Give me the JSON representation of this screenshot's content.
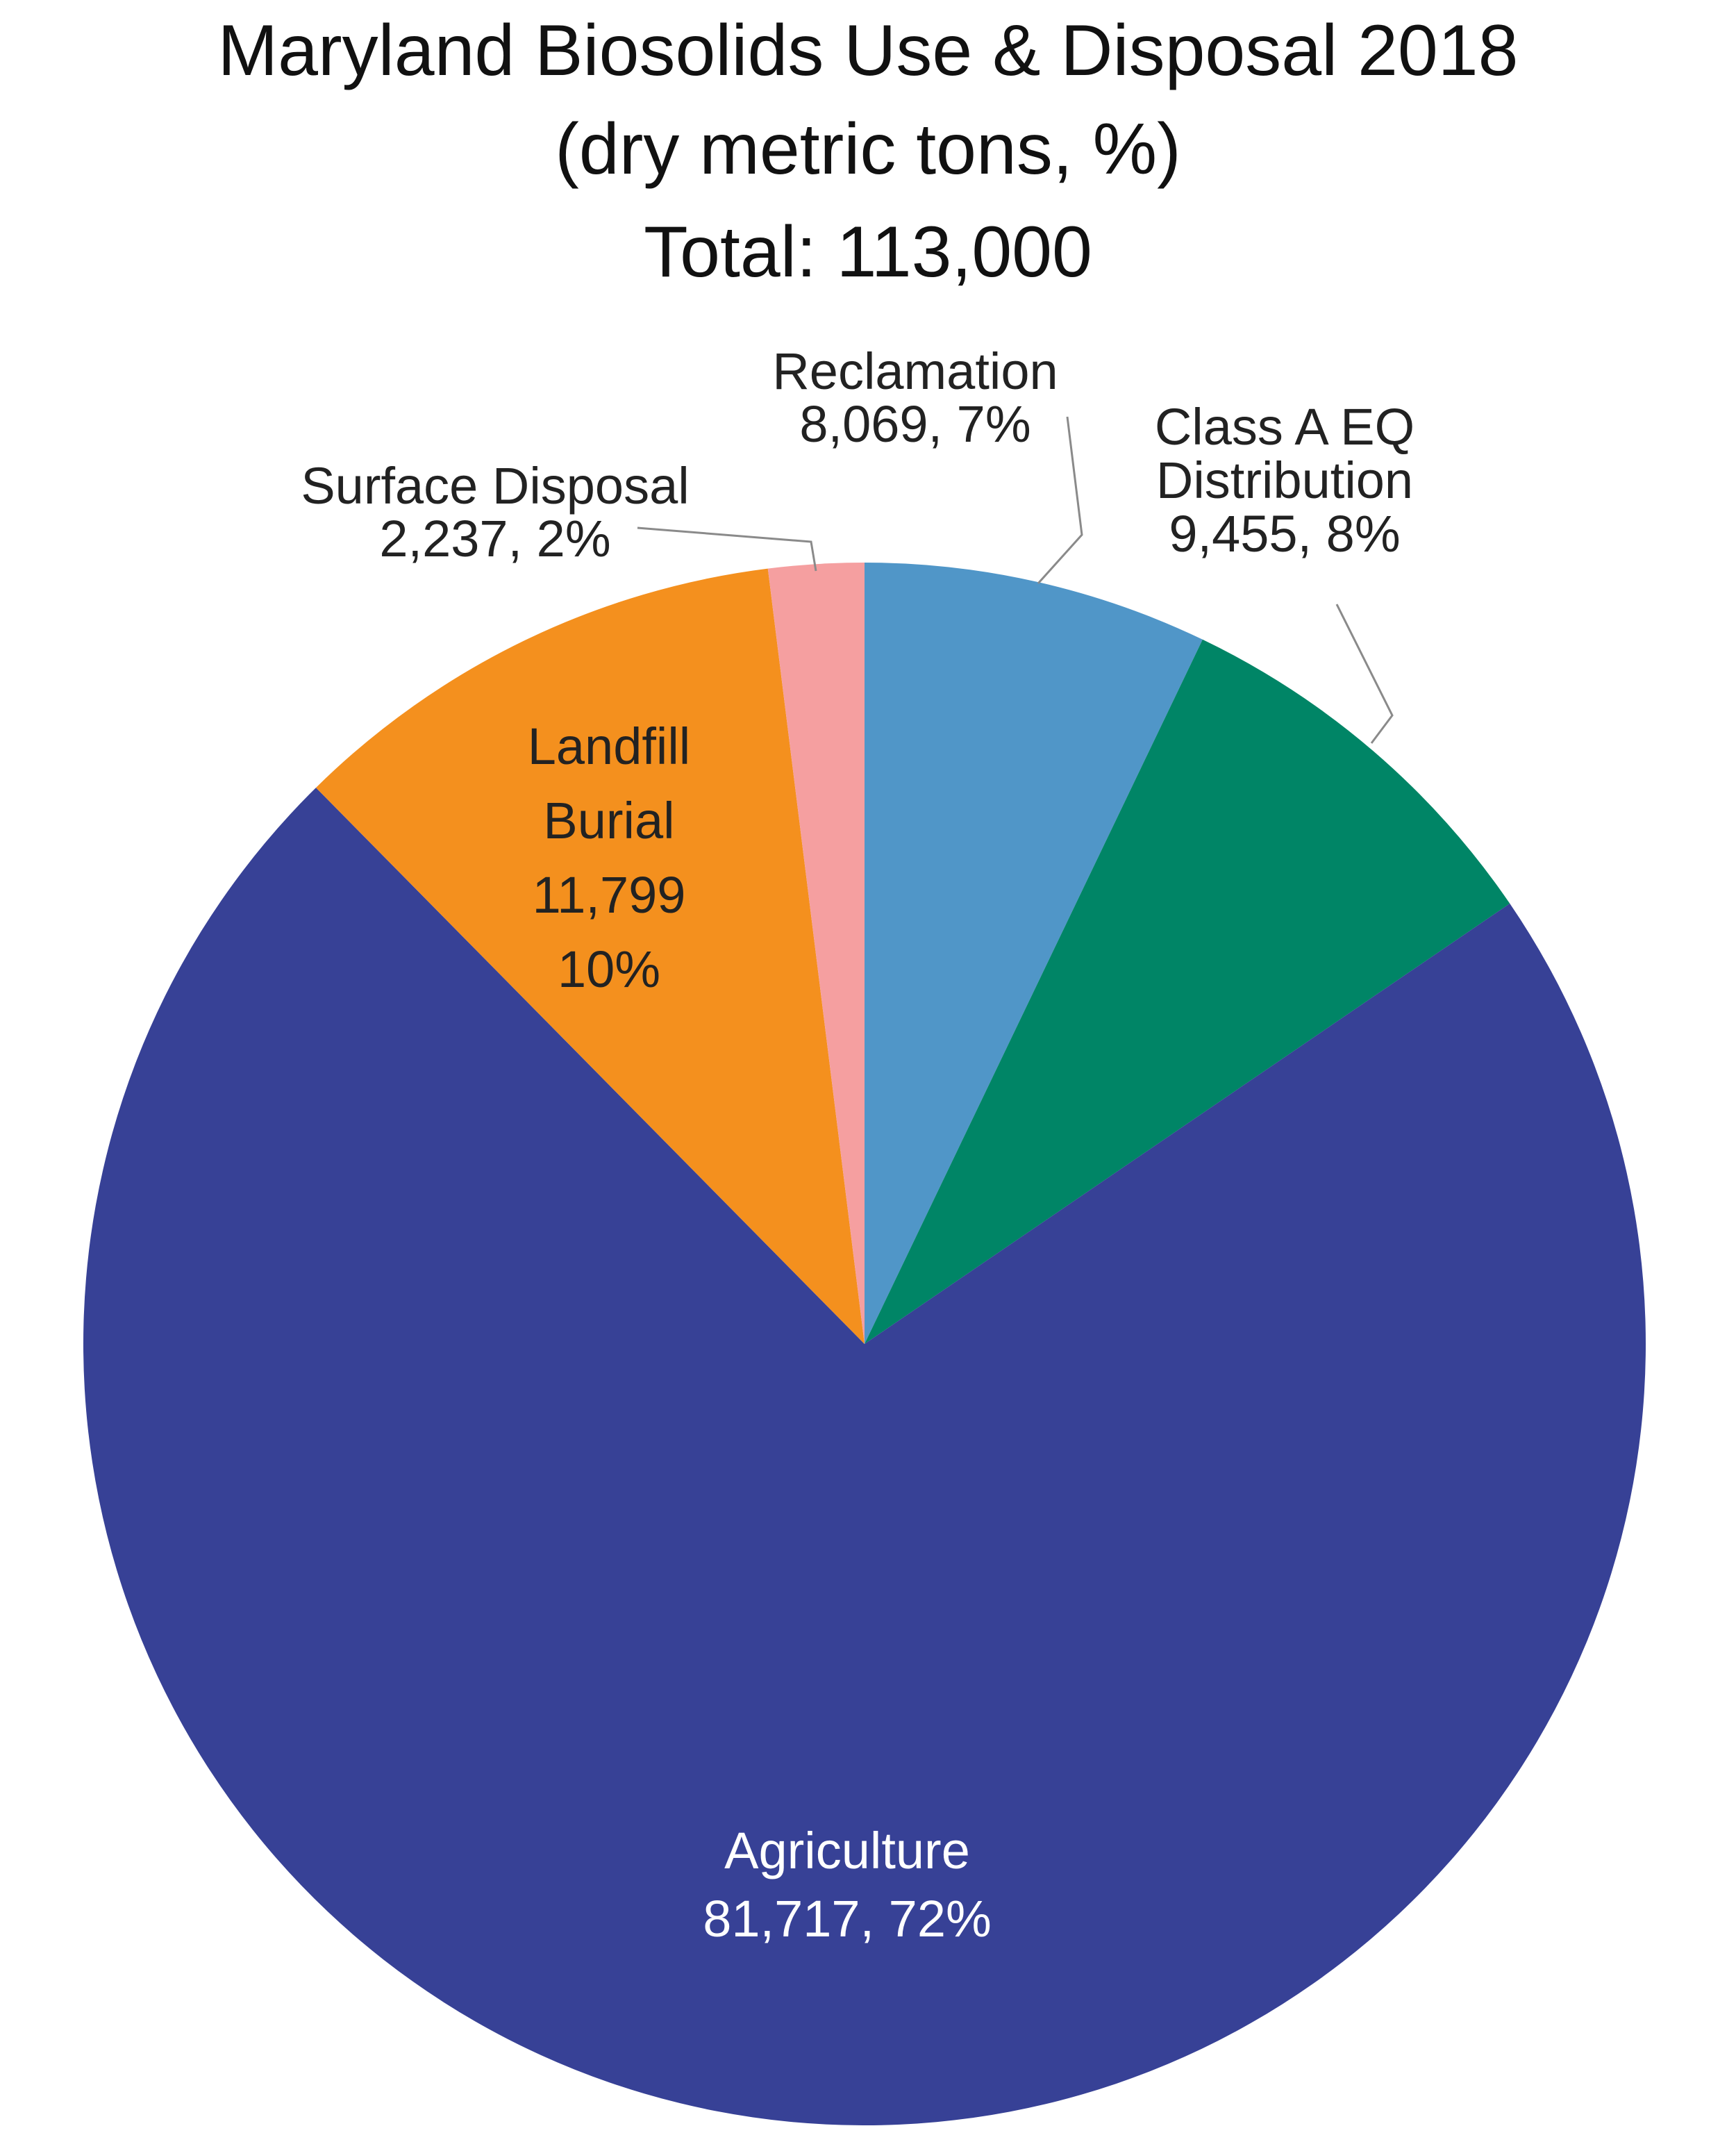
{
  "chart_data": {
    "type": "pie",
    "title": "Maryland Biosolids Use & Disposal 2018",
    "subtitle": "(dry metric tons, %)",
    "total_label": "Total: 113,000",
    "slices": [
      {
        "name": "Reclamation",
        "value": 8069,
        "percent": 7,
        "color": "#5096C8",
        "label_lines": [
          "Reclamation",
          "8,069, 7%"
        ],
        "label_color": "#222222",
        "leader": true
      },
      {
        "name": "Class A EQ Distribution",
        "value": 9455,
        "percent": 8,
        "color": "#008566",
        "label_lines": [
          "Class A EQ",
          "Distribution",
          "9,455, 8%"
        ],
        "label_color": "#222222",
        "leader": true
      },
      {
        "name": "Agriculture",
        "value": 81717,
        "percent": 72,
        "color": "#374196",
        "label_lines": [
          "Agriculture",
          "81,717, 72%"
        ],
        "label_color": "#ffffff",
        "leader": false
      },
      {
        "name": "Landfill Burial",
        "value": 11799,
        "percent": 10,
        "color": "#F4901E",
        "label_lines": [
          "Landfill",
          "Burial",
          "11,799",
          "10%"
        ],
        "label_color": "#222222",
        "leader": false
      },
      {
        "name": "Surface Disposal",
        "value": 2237,
        "percent": 2,
        "color": "#F59FA0",
        "label_lines": [
          "Surface Disposal",
          "2,237, 2%"
        ],
        "label_color": "#222222",
        "leader": true
      }
    ],
    "start_angle_deg": 0,
    "direction": "clockwise",
    "legend": "none"
  }
}
